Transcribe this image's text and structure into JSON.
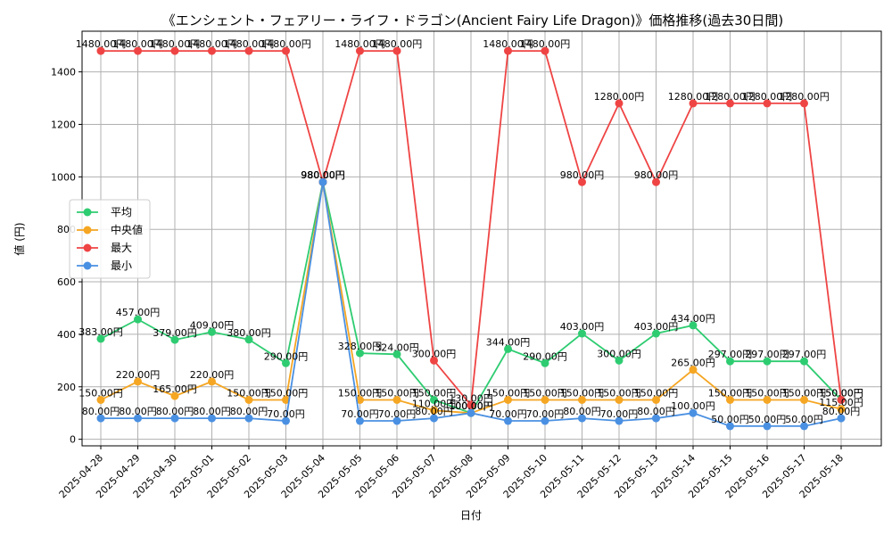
{
  "chart_data": {
    "type": "line",
    "title": "《エンシェント・フェアリー・ライフ・ドラゴン(Ancient Fairy Life Dragon)》価格推移(過去30日間)",
    "xlabel": "日付",
    "ylabel": "値 (円)",
    "ylim": [
      -25,
      1555
    ],
    "yticks": [
      0,
      200,
      400,
      600,
      800,
      1000,
      1200,
      1400
    ],
    "grid": true,
    "legend_position": "center-left",
    "label_suffix": "円",
    "categories": [
      "2025-04-28",
      "2025-04-29",
      "2025-04-30",
      "2025-05-01",
      "2025-05-02",
      "2025-05-03",
      "2025-05-04",
      "2025-05-05",
      "2025-05-06",
      "2025-05-07",
      "2025-05-08",
      "2025-05-09",
      "2025-05-10",
      "2025-05-11",
      "2025-05-12",
      "2025-05-13",
      "2025-05-14",
      "2025-05-15",
      "2025-05-16",
      "2025-05-17",
      "2025-05-18"
    ],
    "series": [
      {
        "name": "平均",
        "color": "#2ecc71",
        "values": [
          383,
          457,
          379,
          409,
          380,
          290,
          980,
          328,
          324,
          150,
          100,
          344,
          290,
          403,
          300,
          403,
          434,
          297,
          297,
          297,
          150
        ]
      },
      {
        "name": "中央値",
        "color": "#f5a623",
        "values": [
          150,
          220,
          165,
          220,
          150,
          150,
          980,
          150,
          150,
          110,
          100,
          150,
          150,
          150,
          150,
          150,
          265,
          150,
          150,
          150,
          115
        ]
      },
      {
        "name": "最大",
        "color": "#ef4444",
        "values": [
          1480,
          1480,
          1480,
          1480,
          1480,
          1480,
          980,
          1480,
          1480,
          300,
          130,
          1480,
          1480,
          980,
          1280,
          980,
          1280,
          1280,
          1280,
          1280,
          150
        ]
      },
      {
        "name": "最小",
        "color": "#4a90e2",
        "values": [
          80,
          80,
          80,
          80,
          80,
          70,
          980,
          70,
          70,
          80,
          100,
          70,
          70,
          80,
          70,
          80,
          100,
          50,
          50,
          50,
          80
        ]
      }
    ]
  }
}
